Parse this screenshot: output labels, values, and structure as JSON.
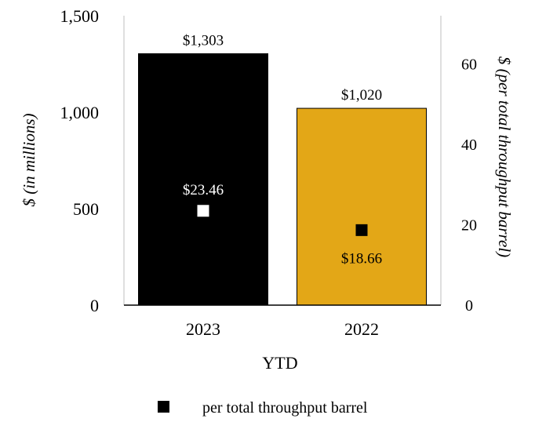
{
  "chart_data": {
    "type": "bar",
    "categories": [
      "2023",
      "2022"
    ],
    "series": [
      {
        "values": [
          1303,
          1020
        ],
        "value_labels": [
          "$1,303",
          "$1,020"
        ],
        "axis": "left",
        "colors": [
          "#000000",
          "#E3A717"
        ]
      },
      {
        "name": "per total throughput barrel",
        "type": "scatter",
        "values": [
          23.46,
          18.66
        ],
        "value_labels": [
          "$23.46",
          "$18.66"
        ],
        "axis": "right",
        "colors": [
          "#ffffff",
          "#000000"
        ]
      }
    ],
    "xlabel": "YTD",
    "ylabel": "$ (in millions)",
    "y2label": "$ (per total throughput barrel)",
    "ylim": [
      0,
      1500
    ],
    "y2lim": [
      0,
      72
    ],
    "yticks": [
      "0",
      "500",
      "1,000",
      "1,500"
    ],
    "yticks_values": [
      0,
      500,
      1000,
      1500
    ],
    "y2ticks": [
      "0",
      "20",
      "40",
      "60"
    ],
    "y2ticks_values": [
      0,
      20,
      40,
      60
    ],
    "grid": false,
    "legend_position": "bottom"
  }
}
